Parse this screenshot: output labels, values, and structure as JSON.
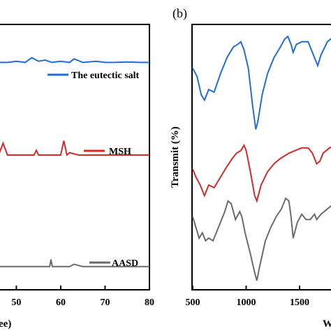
{
  "colors": {
    "eutectic": "#1f6fd6",
    "msh": "#d62a2a",
    "aasd": "#6b6b6b",
    "axis": "#000000"
  },
  "chart_data": [
    {
      "panel": "a",
      "type": "line",
      "xlabel_partial": "ee)",
      "ylabel": "",
      "xlim": [
        46,
        80
      ],
      "xticks": [
        50,
        60,
        70,
        80
      ],
      "xtick_labels": [
        "50",
        "60",
        "70",
        "80"
      ],
      "yticks": [],
      "grid": false,
      "series": [
        {
          "name": "The eutectic salt",
          "color": "#1f6fd6",
          "x": [
            46,
            48,
            50,
            52,
            53.5,
            55,
            56.5,
            58,
            60,
            62,
            63,
            65,
            68,
            70,
            72,
            75,
            78,
            80
          ],
          "y": [
            0.89,
            0.89,
            0.895,
            0.89,
            0.91,
            0.895,
            0.9,
            0.89,
            0.895,
            0.89,
            0.905,
            0.89,
            0.895,
            0.89,
            0.89,
            0.892,
            0.89,
            0.89
          ]
        },
        {
          "name": "MSH",
          "color": "#d62a2a",
          "x": [
            46,
            47,
            48,
            50,
            52,
            54,
            54.5,
            55,
            58,
            60,
            60.7,
            61.4,
            62,
            64,
            66,
            70,
            75,
            80
          ],
          "y": [
            0.5,
            0.55,
            0.5,
            0.5,
            0.5,
            0.5,
            0.52,
            0.5,
            0.5,
            0.5,
            0.56,
            0.5,
            0.51,
            0.5,
            0.5,
            0.5,
            0.5,
            0.5
          ],
          "legend_marker_x": [
            65.8,
            67.2
          ],
          "legend_marker_y": [
            0.55,
            0.55
          ]
        },
        {
          "name": "AASD",
          "color": "#6b6b6b",
          "x": [
            46,
            50,
            55,
            57.5,
            57.8,
            58.1,
            60,
            62,
            63,
            65,
            70,
            75,
            80
          ],
          "y": [
            0.03,
            0.03,
            0.03,
            0.03,
            0.06,
            0.03,
            0.03,
            0.03,
            0.04,
            0.03,
            0.03,
            0.03,
            0.03
          ]
        }
      ]
    },
    {
      "panel": "b",
      "panel_label": "(b)",
      "type": "line",
      "ylabel": "Transmit (%)",
      "xlabel_partial": "W",
      "xlim": [
        500,
        1920
      ],
      "xticks": [
        500,
        1000,
        1500
      ],
      "xtick_labels": [
        "500",
        "1000",
        "1500"
      ],
      "yticks": [],
      "grid": false,
      "series": [
        {
          "color": "#1f6fd6",
          "x": [
            500,
            540,
            580,
            610,
            650,
            700,
            760,
            820,
            880,
            920,
            950,
            980,
            1020,
            1060,
            1090,
            1110,
            1150,
            1200,
            1260,
            1320,
            1360,
            1390,
            1420,
            1440,
            1470,
            1520,
            1580,
            1640,
            1670,
            1700,
            1760,
            1820,
            1880,
            1920
          ],
          "y": [
            0.84,
            0.81,
            0.74,
            0.72,
            0.76,
            0.75,
            0.82,
            0.88,
            0.92,
            0.93,
            0.94,
            0.91,
            0.84,
            0.7,
            0.61,
            0.64,
            0.74,
            0.82,
            0.88,
            0.92,
            0.95,
            0.96,
            0.93,
            0.9,
            0.93,
            0.94,
            0.94,
            0.88,
            0.85,
            0.89,
            0.94,
            0.96,
            0.97,
            0.97
          ]
        },
        {
          "color": "#d62a2a",
          "x": [
            500,
            530,
            570,
            610,
            650,
            700,
            760,
            820,
            870,
            910,
            950,
            980,
            1000,
            1040,
            1080,
            1100,
            1140,
            1200,
            1260,
            1320,
            1400,
            1460,
            1520,
            1580,
            1620,
            1660,
            1690,
            1720,
            1780,
            1840,
            1920
          ],
          "y": [
            0.46,
            0.43,
            0.4,
            0.36,
            0.4,
            0.39,
            0.43,
            0.47,
            0.5,
            0.52,
            0.53,
            0.55,
            0.53,
            0.45,
            0.36,
            0.34,
            0.4,
            0.45,
            0.48,
            0.5,
            0.52,
            0.53,
            0.54,
            0.54,
            0.52,
            0.48,
            0.49,
            0.52,
            0.54,
            0.55,
            0.56
          ]
        },
        {
          "color": "#6b6b6b",
          "x": [
            500,
            530,
            560,
            590,
            620,
            650,
            690,
            720,
            760,
            800,
            830,
            860,
            900,
            940,
            960,
            990,
            1040,
            1080,
            1100,
            1130,
            1180,
            1230,
            1280,
            1330,
            1370,
            1400,
            1420,
            1440,
            1480,
            1520,
            1560,
            1600,
            1640,
            1660,
            1700,
            1760,
            1820,
            1880,
            1920
          ],
          "y": [
            0.28,
            0.24,
            0.2,
            0.22,
            0.19,
            0.2,
            0.19,
            0.22,
            0.26,
            0.3,
            0.34,
            0.33,
            0.27,
            0.3,
            0.28,
            0.22,
            0.14,
            0.07,
            0.04,
            0.1,
            0.19,
            0.24,
            0.28,
            0.31,
            0.35,
            0.34,
            0.28,
            0.2,
            0.26,
            0.29,
            0.27,
            0.27,
            0.29,
            0.27,
            0.29,
            0.31,
            0.33,
            0.34,
            0.34
          ]
        }
      ]
    }
  ]
}
